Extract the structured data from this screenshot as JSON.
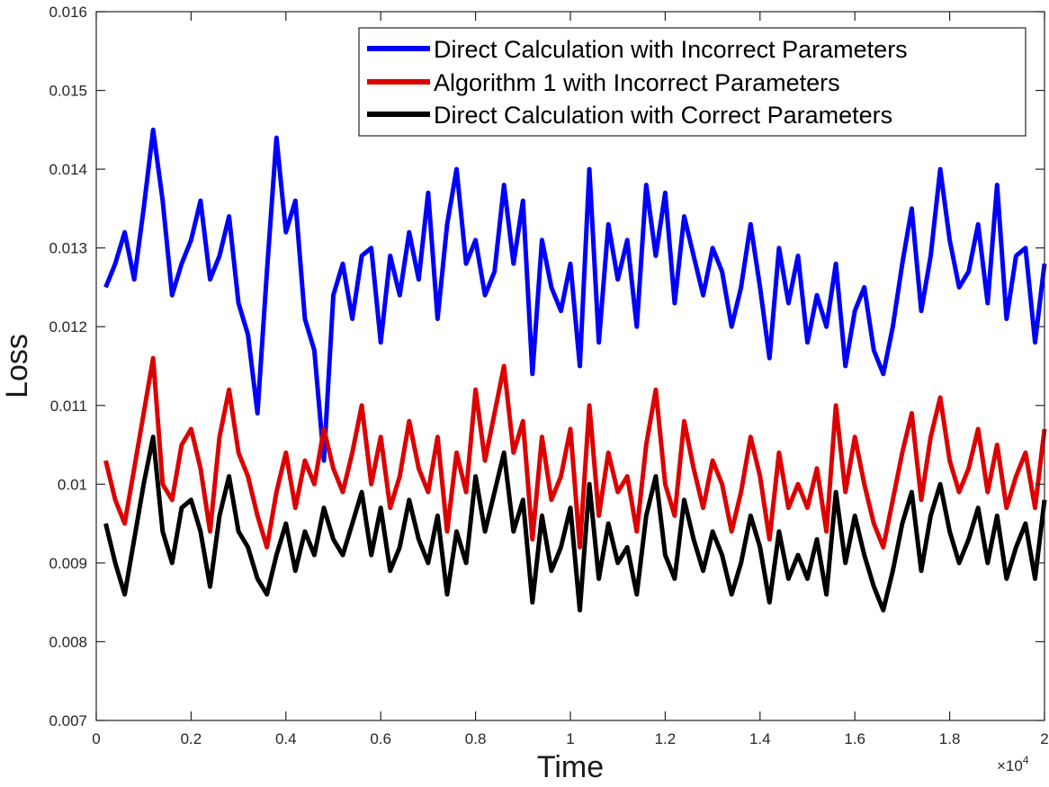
{
  "chart_data": {
    "type": "line",
    "title": "",
    "xlabel": "Time",
    "ylabel": "Loss",
    "x_exponent_label": {
      "base": "×10",
      "exp": "4"
    },
    "xlim": [
      0,
      20000
    ],
    "ylim": [
      0.007,
      0.016
    ],
    "x_ticks": [
      0,
      2000,
      4000,
      6000,
      8000,
      10000,
      12000,
      14000,
      16000,
      18000,
      20000
    ],
    "x_tick_labels": [
      "0",
      "0.2",
      "0.4",
      "0.6",
      "0.8",
      "1",
      "1.2",
      "1.4",
      "1.6",
      "1.8",
      "2"
    ],
    "y_ticks": [
      0.007,
      0.008,
      0.009,
      0.01,
      0.011,
      0.012,
      0.013,
      0.014,
      0.015,
      0.016
    ],
    "y_tick_labels": [
      "0.007",
      "0.008",
      "0.009",
      "0.01",
      "0.011",
      "0.012",
      "0.013",
      "0.014",
      "0.015",
      "0.016"
    ],
    "grid": false,
    "legend_position": "top-right",
    "x": [
      200,
      400,
      600,
      800,
      1000,
      1200,
      1400,
      1600,
      1800,
      2000,
      2200,
      2400,
      2600,
      2800,
      3000,
      3200,
      3400,
      3600,
      3800,
      4000,
      4200,
      4400,
      4600,
      4800,
      5000,
      5200,
      5400,
      5600,
      5800,
      6000,
      6200,
      6400,
      6600,
      6800,
      7000,
      7200,
      7400,
      7600,
      7800,
      8000,
      8200,
      8400,
      8600,
      8800,
      9000,
      9200,
      9400,
      9600,
      9800,
      10000,
      10200,
      10400,
      10600,
      10800,
      11000,
      11200,
      11400,
      11600,
      11800,
      12000,
      12200,
      12400,
      12600,
      12800,
      13000,
      13200,
      13400,
      13600,
      13800,
      14000,
      14200,
      14400,
      14600,
      14800,
      15000,
      15200,
      15400,
      15600,
      15800,
      16000,
      16200,
      16400,
      16600,
      16800,
      17000,
      17200,
      17400,
      17600,
      17800,
      18000,
      18200,
      18400,
      18600,
      18800,
      19000,
      19200,
      19400,
      19600,
      19800,
      20000
    ],
    "series": [
      {
        "name": "Direct Calculation with Incorrect Parameters",
        "color": "#0000ff",
        "values": [
          0.0125,
          0.0128,
          0.0132,
          0.0126,
          0.0135,
          0.0145,
          0.0136,
          0.0124,
          0.0128,
          0.0131,
          0.0136,
          0.0126,
          0.0129,
          0.0134,
          0.0123,
          0.0119,
          0.0109,
          0.0127,
          0.0144,
          0.0132,
          0.0136,
          0.0121,
          0.0117,
          0.0103,
          0.0124,
          0.0128,
          0.0121,
          0.0129,
          0.013,
          0.0118,
          0.0129,
          0.0124,
          0.0132,
          0.0126,
          0.0137,
          0.0121,
          0.0133,
          0.014,
          0.0128,
          0.0131,
          0.0124,
          0.0127,
          0.0138,
          0.0128,
          0.0136,
          0.0114,
          0.0131,
          0.0125,
          0.0122,
          0.0128,
          0.0115,
          0.014,
          0.0118,
          0.0133,
          0.0126,
          0.0131,
          0.012,
          0.0138,
          0.0129,
          0.0137,
          0.0123,
          0.0134,
          0.0129,
          0.0124,
          0.013,
          0.0127,
          0.012,
          0.0125,
          0.0133,
          0.0125,
          0.0116,
          0.013,
          0.0123,
          0.0129,
          0.0118,
          0.0124,
          0.012,
          0.0128,
          0.0115,
          0.0122,
          0.0125,
          0.0117,
          0.0114,
          0.012,
          0.0128,
          0.0135,
          0.0122,
          0.0129,
          0.014,
          0.0131,
          0.0125,
          0.0127,
          0.0133,
          0.0123,
          0.0138,
          0.0121,
          0.0129,
          0.013,
          0.0118,
          0.0128
        ]
      },
      {
        "name": "Algorithm 1 with Incorrect Parameters",
        "color": "#dd0000",
        "values": [
          0.0103,
          0.0098,
          0.0095,
          0.0102,
          0.0109,
          0.0116,
          0.01,
          0.0098,
          0.0105,
          0.0107,
          0.0102,
          0.0094,
          0.0106,
          0.0112,
          0.0104,
          0.0101,
          0.0096,
          0.0092,
          0.0099,
          0.0104,
          0.0097,
          0.0103,
          0.01,
          0.0107,
          0.0102,
          0.0099,
          0.0104,
          0.011,
          0.01,
          0.0106,
          0.0097,
          0.0101,
          0.0108,
          0.0102,
          0.0099,
          0.0106,
          0.0094,
          0.0104,
          0.0099,
          0.0112,
          0.0103,
          0.0109,
          0.0115,
          0.0104,
          0.0108,
          0.0093,
          0.0106,
          0.0098,
          0.0101,
          0.0107,
          0.0092,
          0.011,
          0.0096,
          0.0104,
          0.0099,
          0.0101,
          0.0094,
          0.0105,
          0.0112,
          0.01,
          0.0096,
          0.0108,
          0.0102,
          0.0097,
          0.0103,
          0.01,
          0.0094,
          0.0099,
          0.0106,
          0.0101,
          0.0093,
          0.0104,
          0.0097,
          0.01,
          0.0097,
          0.0102,
          0.0094,
          0.011,
          0.0099,
          0.0106,
          0.01,
          0.0095,
          0.0092,
          0.0098,
          0.0104,
          0.0109,
          0.0098,
          0.0106,
          0.0111,
          0.0103,
          0.0099,
          0.0102,
          0.0107,
          0.0099,
          0.0105,
          0.0097,
          0.0101,
          0.0104,
          0.0097,
          0.0107
        ]
      },
      {
        "name": "Direct Calculation with Correct Parameters",
        "color": "#000000",
        "values": [
          0.0095,
          0.009,
          0.0086,
          0.0093,
          0.01,
          0.0106,
          0.0094,
          0.009,
          0.0097,
          0.0098,
          0.0094,
          0.0087,
          0.0096,
          0.0101,
          0.0094,
          0.0092,
          0.0088,
          0.0086,
          0.0091,
          0.0095,
          0.0089,
          0.0094,
          0.0091,
          0.0097,
          0.0093,
          0.0091,
          0.0095,
          0.0099,
          0.0091,
          0.0097,
          0.0089,
          0.0092,
          0.0098,
          0.0093,
          0.009,
          0.0096,
          0.0086,
          0.0094,
          0.009,
          0.0101,
          0.0094,
          0.0099,
          0.0104,
          0.0094,
          0.0098,
          0.0085,
          0.0096,
          0.0089,
          0.0092,
          0.0097,
          0.0084,
          0.01,
          0.0088,
          0.0095,
          0.009,
          0.0092,
          0.0086,
          0.0096,
          0.0101,
          0.0091,
          0.0088,
          0.0098,
          0.0093,
          0.0089,
          0.0094,
          0.0091,
          0.0086,
          0.009,
          0.0096,
          0.0092,
          0.0085,
          0.0094,
          0.0088,
          0.0091,
          0.0088,
          0.0093,
          0.0086,
          0.0099,
          0.009,
          0.0096,
          0.0091,
          0.0087,
          0.0084,
          0.0089,
          0.0095,
          0.0099,
          0.0089,
          0.0096,
          0.01,
          0.0094,
          0.009,
          0.0093,
          0.0097,
          0.009,
          0.0096,
          0.0088,
          0.0092,
          0.0095,
          0.0088,
          0.0098
        ]
      }
    ]
  }
}
